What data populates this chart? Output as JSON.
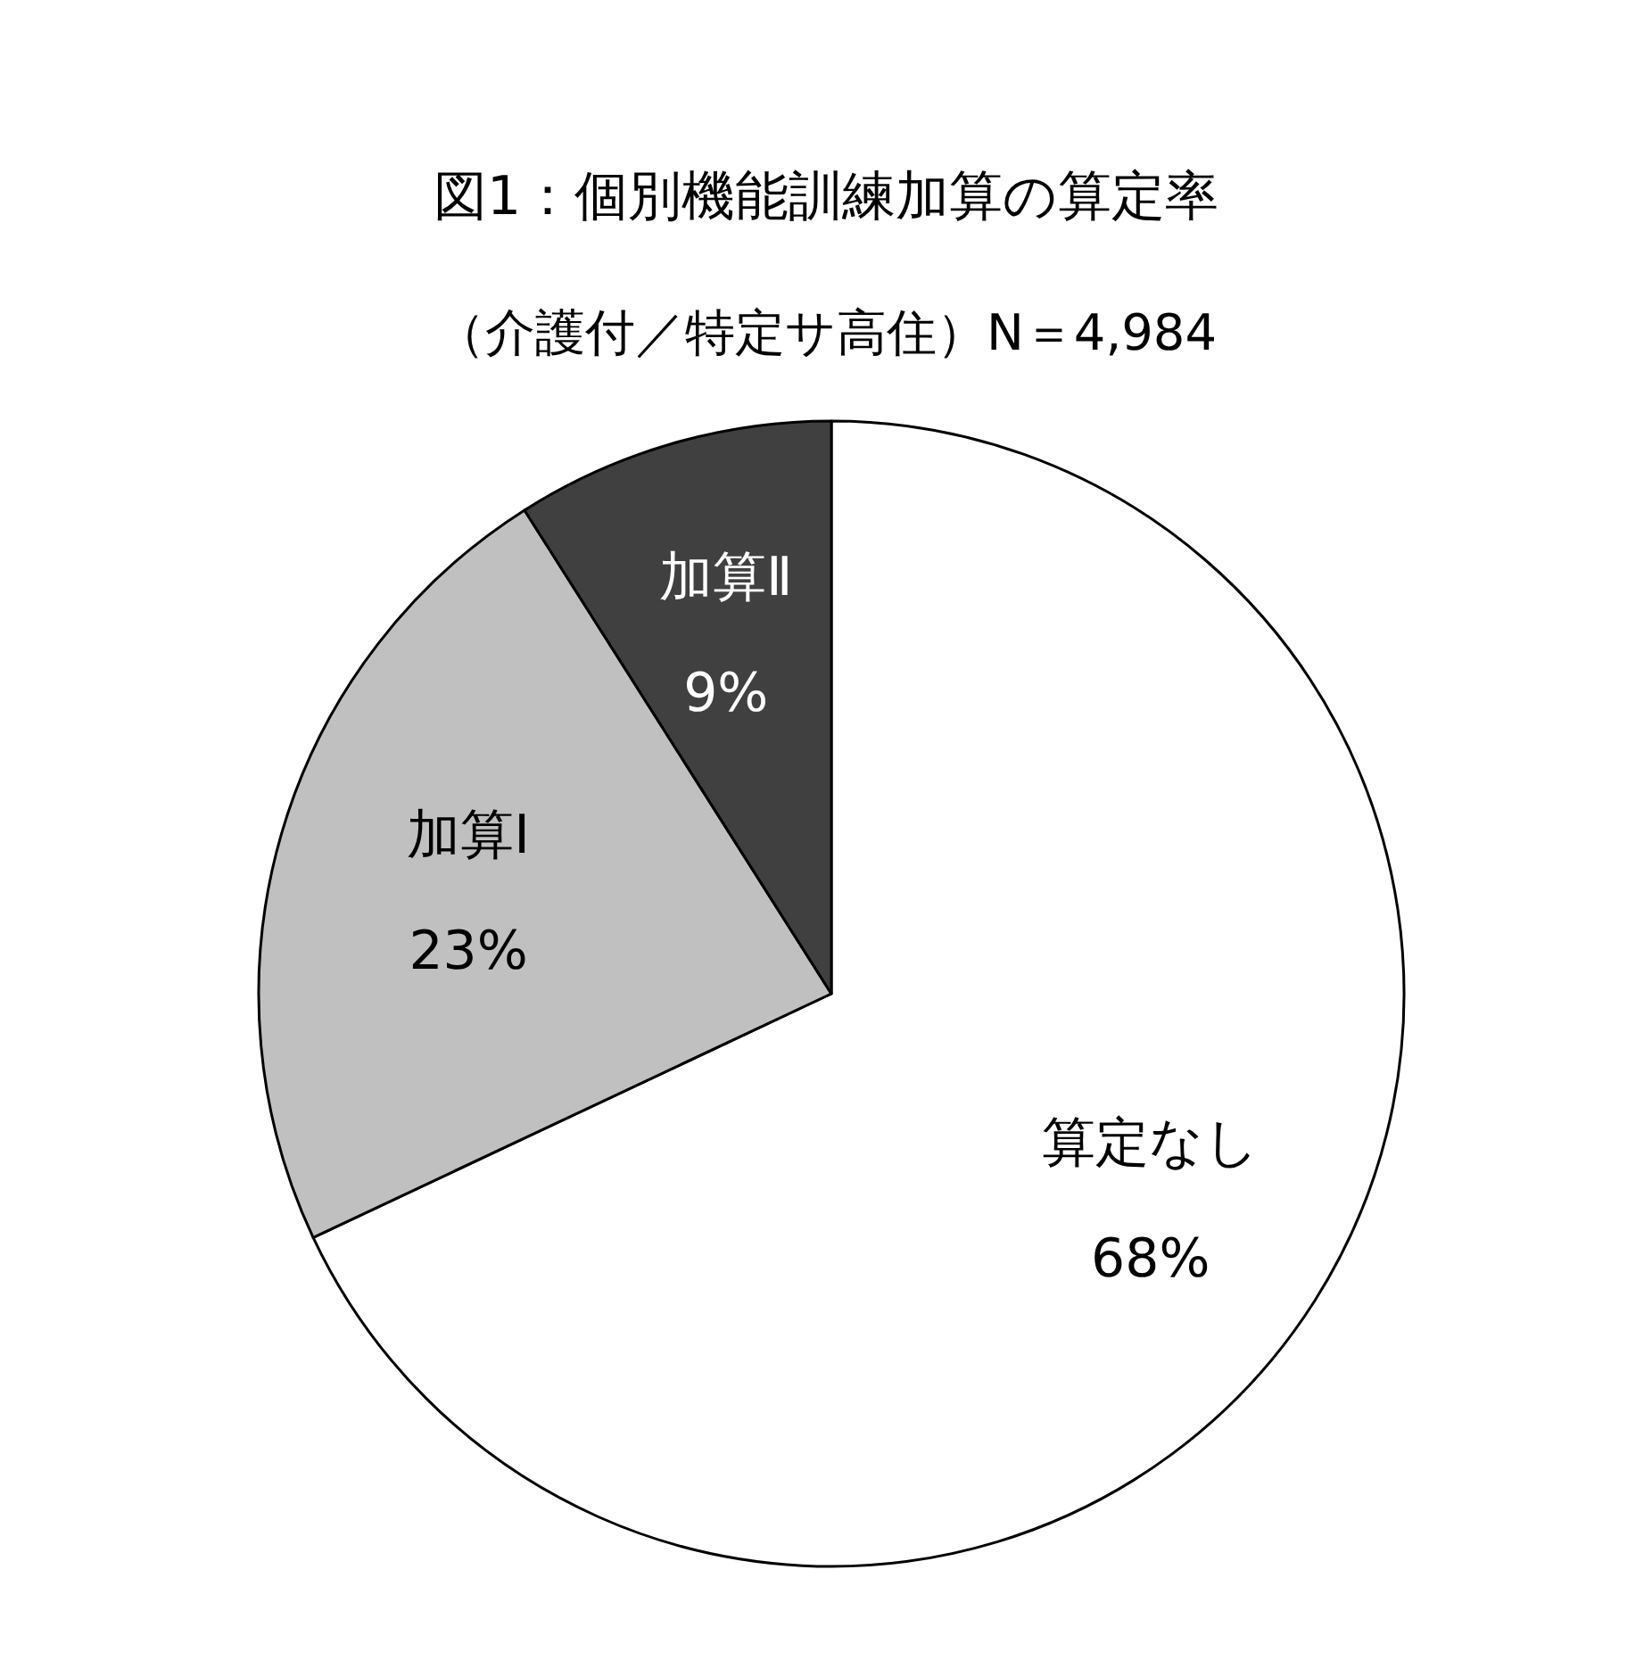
{
  "chart_data": {
    "type": "pie",
    "title": "図1：個別機能訓練加算の算定率",
    "subtitle": "（介護付／特定サ高住）N＝4,984",
    "categories": [
      "算定なし",
      "加算Ⅰ",
      "加算Ⅱ"
    ],
    "values": [
      68,
      23,
      9
    ],
    "colors": [
      "#ffffff",
      "#c0c0c0",
      "#404040"
    ],
    "value_labels": [
      "68%",
      "23%",
      "9%"
    ],
    "legend": false
  }
}
